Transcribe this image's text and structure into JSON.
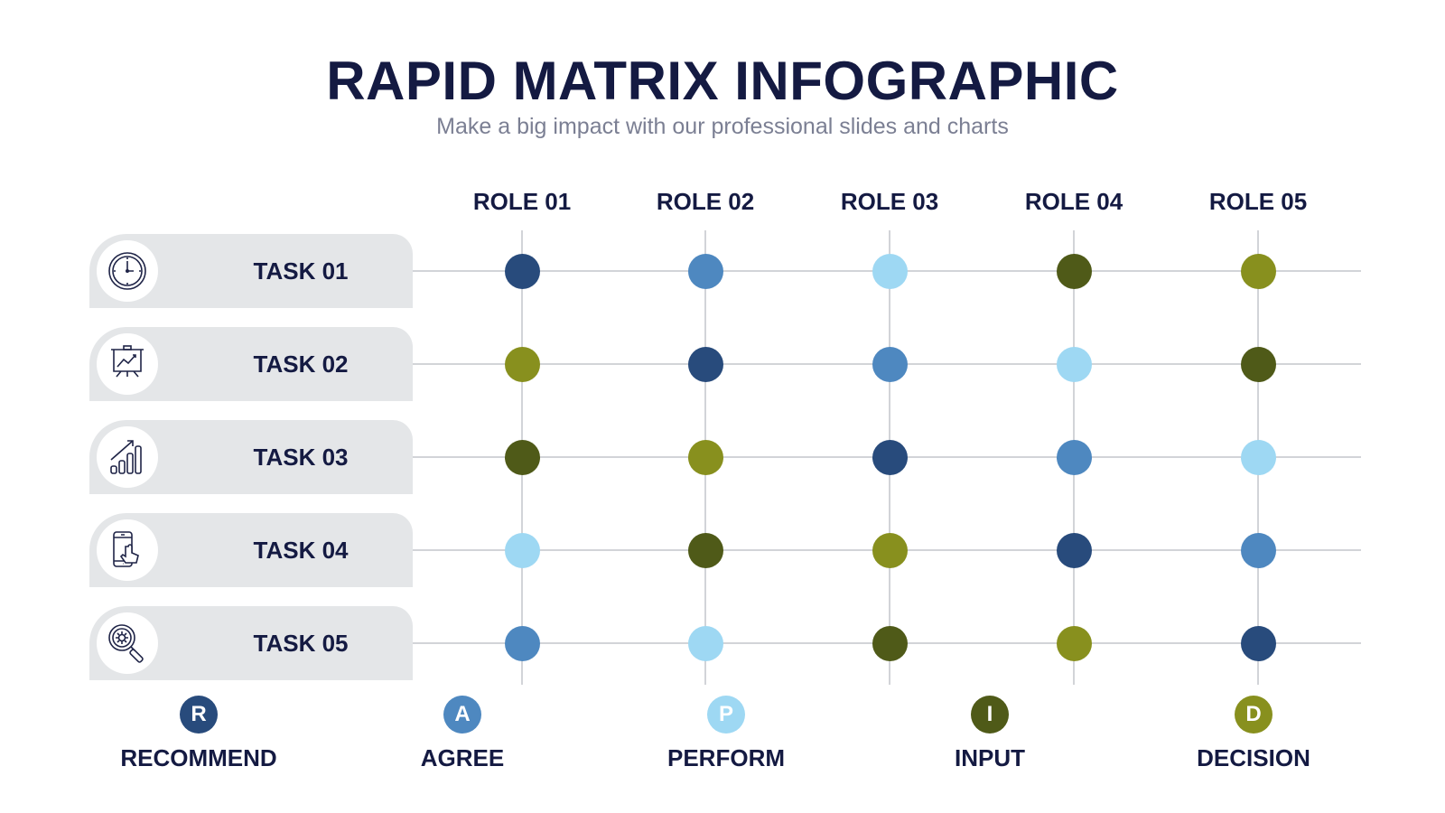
{
  "title": "RAPID MATRIX INFOGRAPHIC",
  "subtitle": "Make a big impact with our professional slides and charts",
  "roles": [
    "ROLE 01",
    "ROLE 02",
    "ROLE 03",
    "ROLE 04",
    "ROLE 05"
  ],
  "tasks": [
    {
      "label": "TASK 01",
      "icon": "clock-icon"
    },
    {
      "label": "TASK 02",
      "icon": "presentation-board-icon"
    },
    {
      "label": "TASK 03",
      "icon": "growth-chart-icon"
    },
    {
      "label": "TASK 04",
      "icon": "smartphone-touch-icon"
    },
    {
      "label": "TASK 05",
      "icon": "magnifier-gear-icon"
    }
  ],
  "matrix": [
    [
      "R",
      "A",
      "P",
      "I",
      "D"
    ],
    [
      "D",
      "R",
      "A",
      "P",
      "I"
    ],
    [
      "I",
      "D",
      "R",
      "A",
      "P"
    ],
    [
      "P",
      "I",
      "D",
      "R",
      "A"
    ],
    [
      "A",
      "P",
      "I",
      "D",
      "R"
    ]
  ],
  "legend": [
    {
      "letter": "R",
      "label": "RECOMMEND",
      "color": "#284b7c"
    },
    {
      "letter": "A",
      "label": "AGREE",
      "color": "#4e88c0"
    },
    {
      "letter": "P",
      "label": "PERFORM",
      "color": "#9ed8f3"
    },
    {
      "letter": "I",
      "label": "INPUT",
      "color": "#4f5a18"
    },
    {
      "letter": "D",
      "label": "DECISION",
      "color": "#88901e"
    }
  ]
}
